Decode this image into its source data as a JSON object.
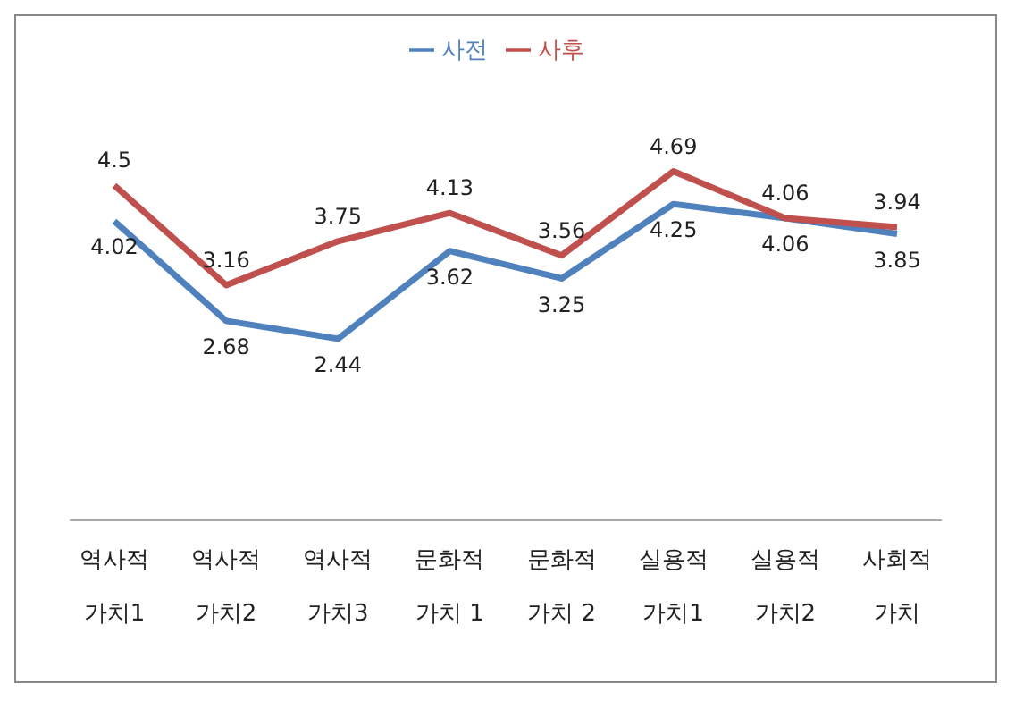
{
  "chart_data": {
    "type": "line",
    "categories": [
      "역사적\n가치1",
      "역사적\n가치2",
      "역사적\n가치3",
      "문화적\n가치 1",
      "문화적\n가치 2",
      "실용적\n가치1",
      "실용적\n가치2",
      "사회적\n가치"
    ],
    "series": [
      {
        "name": "사전",
        "color": "#4f81bd",
        "values": [
          4.02,
          2.68,
          2.44,
          3.62,
          3.25,
          4.25,
          4.06,
          3.85
        ]
      },
      {
        "name": "사후",
        "color": "#c0504d",
        "values": [
          4.5,
          3.16,
          3.75,
          4.13,
          3.56,
          4.69,
          4.06,
          3.94
        ]
      }
    ],
    "tick_labels": "x",
    "data_labels": true,
    "legend": "top",
    "grid": false,
    "marker": "none",
    "line_style": "solid"
  }
}
